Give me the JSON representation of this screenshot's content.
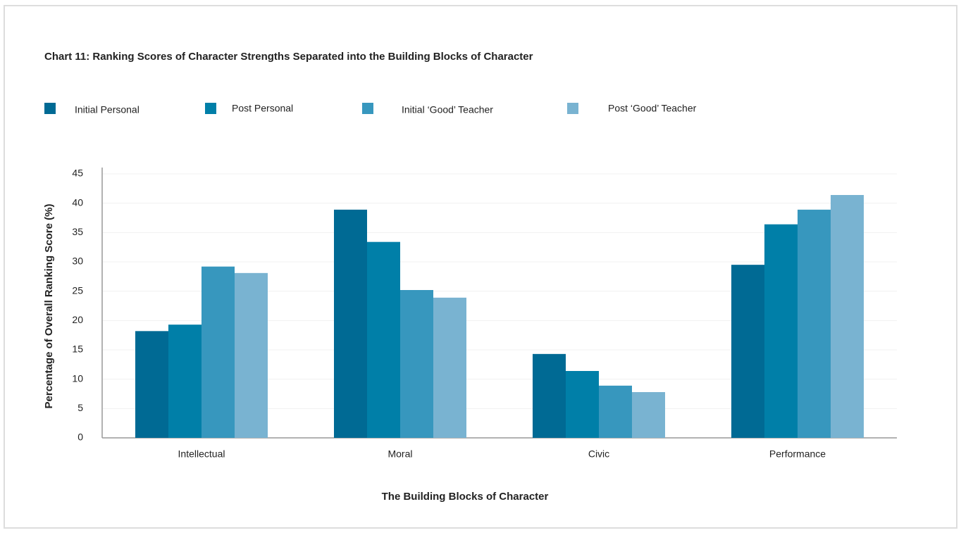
{
  "chart_data": {
    "type": "bar",
    "title": "Chart 11: Ranking Scores of Character Strengths Separated into the Building Blocks of Character",
    "xlabel": "The Building Blocks of Character",
    "ylabel": "Percentage of Overall Ranking Score (%)",
    "categories": [
      "Intellectual",
      "Moral",
      "Civic",
      "Performance"
    ],
    "series": [
      {
        "name": "Initial Personal",
        "color": "#006a94",
        "values": [
          18.2,
          38.9,
          14.3,
          29.5
        ]
      },
      {
        "name": "Post Personal",
        "color": "#007fa8",
        "values": [
          19.3,
          33.4,
          11.4,
          36.4
        ]
      },
      {
        "name": "Initial ‘Good’ Teacher",
        "color": "#3797be",
        "values": [
          29.2,
          25.2,
          8.9,
          38.9
        ]
      },
      {
        "name": "Post ‘Good’ Teacher",
        "color": "#79b3d1",
        "values": [
          28.1,
          23.9,
          7.8,
          41.4
        ]
      }
    ],
    "ylim": [
      0,
      45
    ],
    "yticks": [
      0,
      5,
      10,
      15,
      20,
      25,
      30,
      35,
      40,
      45
    ],
    "grid": true
  }
}
